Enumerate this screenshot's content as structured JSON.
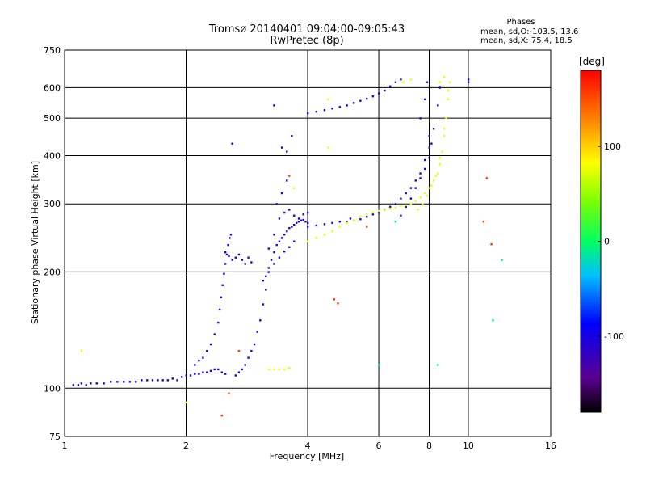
{
  "chart_data": {
    "type": "scatter",
    "title": "Tromsø 20140401 09:04:00-09:05:43",
    "subtitle": "RwPretec (8p)",
    "xlabel": "Frequency [MHz]",
    "ylabel": "Stationary phase Virtual Height [km]",
    "x_scale": "log",
    "y_scale": "log",
    "xlim": [
      1,
      16
    ],
    "ylim": [
      75,
      750
    ],
    "x_ticks": [
      1,
      2,
      4,
      6,
      8,
      10,
      16
    ],
    "y_ticks": [
      75,
      100,
      200,
      300,
      400,
      500,
      600,
      750
    ],
    "x_tick_labels": [
      "1",
      "2",
      "4",
      "6",
      "8",
      "10",
      "16"
    ],
    "y_tick_labels": [
      "75",
      "100",
      "200",
      "300",
      "400",
      "500",
      "600",
      "750"
    ],
    "grid": true,
    "stats": {
      "heading": "Phases",
      "o_line": "mean, sd,O:-103.5, 13.6",
      "x_line": "mean, sd,X: 75.4, 18.5"
    },
    "colorbar": {
      "label": "[deg]",
      "range": [
        -180,
        180
      ],
      "ticks": [
        100,
        0,
        -100
      ],
      "tick_labels": [
        "100",
        "0",
        "-100"
      ]
    },
    "series": [
      {
        "phase": -105,
        "points": [
          [
            1.05,
            102
          ],
          [
            1.08,
            102
          ],
          [
            1.1,
            103
          ],
          [
            1.13,
            102
          ],
          [
            1.16,
            103
          ],
          [
            1.2,
            103
          ],
          [
            1.25,
            103
          ],
          [
            1.3,
            104
          ],
          [
            1.35,
            104
          ],
          [
            1.4,
            104
          ],
          [
            1.45,
            104
          ],
          [
            1.5,
            104
          ],
          [
            1.55,
            105
          ],
          [
            1.6,
            105
          ],
          [
            1.65,
            105
          ],
          [
            1.7,
            105
          ],
          [
            1.75,
            105
          ],
          [
            1.8,
            105
          ],
          [
            1.85,
            106
          ],
          [
            1.9,
            105
          ],
          [
            1.95,
            107
          ],
          [
            2.0,
            108
          ],
          [
            2.05,
            108
          ],
          [
            2.1,
            109
          ],
          [
            2.15,
            109
          ],
          [
            2.2,
            110
          ],
          [
            2.25,
            110
          ],
          [
            2.3,
            111
          ],
          [
            2.35,
            112
          ],
          [
            2.4,
            112
          ],
          [
            2.45,
            110
          ],
          [
            2.5,
            109
          ],
          [
            2.1,
            115
          ],
          [
            2.15,
            118
          ],
          [
            2.2,
            120
          ],
          [
            2.25,
            125
          ],
          [
            2.3,
            130
          ],
          [
            2.35,
            138
          ],
          [
            2.4,
            148
          ],
          [
            2.42,
            160
          ],
          [
            2.44,
            172
          ],
          [
            2.46,
            185
          ],
          [
            2.48,
            198
          ],
          [
            2.5,
            210
          ],
          [
            2.52,
            222
          ],
          [
            2.54,
            235
          ],
          [
            2.56,
            245
          ],
          [
            2.58,
            250
          ],
          [
            2.5,
            225
          ],
          [
            2.55,
            220
          ],
          [
            2.6,
            215
          ],
          [
            2.65,
            218
          ],
          [
            2.7,
            222
          ],
          [
            2.75,
            215
          ],
          [
            2.8,
            210
          ],
          [
            2.85,
            218
          ],
          [
            2.9,
            212
          ],
          [
            2.65,
            108
          ],
          [
            2.7,
            110
          ],
          [
            2.75,
            112
          ],
          [
            2.8,
            115
          ],
          [
            2.85,
            120
          ],
          [
            2.9,
            125
          ],
          [
            2.95,
            130
          ],
          [
            3.0,
            140
          ],
          [
            3.05,
            150
          ],
          [
            3.1,
            165
          ],
          [
            3.15,
            180
          ],
          [
            3.2,
            200
          ],
          [
            3.1,
            190
          ],
          [
            3.15,
            195
          ],
          [
            3.2,
            205
          ],
          [
            3.25,
            215
          ],
          [
            3.3,
            225
          ],
          [
            3.35,
            235
          ],
          [
            3.4,
            240
          ],
          [
            3.45,
            245
          ],
          [
            3.5,
            250
          ],
          [
            3.55,
            255
          ],
          [
            3.6,
            260
          ],
          [
            3.65,
            262
          ],
          [
            3.7,
            265
          ],
          [
            3.75,
            268
          ],
          [
            3.8,
            270
          ],
          [
            3.85,
            272
          ],
          [
            3.9,
            273
          ],
          [
            3.95,
            270
          ],
          [
            4.0,
            268
          ],
          [
            3.2,
            230
          ],
          [
            3.3,
            250
          ],
          [
            3.4,
            275
          ],
          [
            3.5,
            285
          ],
          [
            3.6,
            290
          ],
          [
            3.7,
            280
          ],
          [
            3.8,
            275
          ],
          [
            3.9,
            282
          ],
          [
            4.0,
            285
          ],
          [
            3.3,
            210
          ],
          [
            3.4,
            218
          ],
          [
            3.5,
            226
          ],
          [
            3.6,
            232
          ],
          [
            3.7,
            240
          ],
          [
            3.35,
            300
          ],
          [
            3.45,
            320
          ],
          [
            3.55,
            345
          ],
          [
            4.0,
            262
          ],
          [
            4.2,
            264
          ],
          [
            4.4,
            266
          ],
          [
            4.6,
            268
          ],
          [
            4.8,
            270
          ],
          [
            5.0,
            270
          ],
          [
            5.2,
            272
          ],
          [
            5.4,
            274
          ],
          [
            5.6,
            278
          ],
          [
            5.8,
            282
          ],
          [
            6.0,
            285
          ],
          [
            6.2,
            290
          ],
          [
            6.4,
            295
          ],
          [
            6.6,
            300
          ],
          [
            6.8,
            310
          ],
          [
            7.0,
            320
          ],
          [
            7.2,
            330
          ],
          [
            7.4,
            345
          ],
          [
            7.6,
            360
          ],
          [
            7.8,
            390
          ],
          [
            8.0,
            420
          ],
          [
            8.2,
            470
          ],
          [
            8.4,
            540
          ],
          [
            8.5,
            600
          ],
          [
            6.8,
            280
          ],
          [
            7.0,
            295
          ],
          [
            7.2,
            310
          ],
          [
            7.4,
            330
          ],
          [
            7.6,
            350
          ],
          [
            7.8,
            370
          ],
          [
            8.0,
            395
          ],
          [
            8.1,
            430
          ],
          [
            7.6,
            500
          ],
          [
            7.8,
            560
          ],
          [
            7.9,
            620
          ],
          [
            8.0,
            450
          ],
          [
            4.0,
            515
          ],
          [
            4.2,
            520
          ],
          [
            4.4,
            525
          ],
          [
            4.6,
            530
          ],
          [
            4.8,
            535
          ],
          [
            5.0,
            540
          ],
          [
            5.2,
            548
          ],
          [
            5.4,
            555
          ],
          [
            5.6,
            562
          ],
          [
            5.8,
            570
          ],
          [
            6.0,
            580
          ],
          [
            6.2,
            590
          ],
          [
            6.4,
            605
          ],
          [
            6.6,
            620
          ],
          [
            6.8,
            630
          ],
          [
            3.45,
            420
          ],
          [
            3.55,
            410
          ],
          [
            3.65,
            450
          ],
          [
            2.6,
            430
          ],
          [
            3.3,
            540
          ],
          [
            5.1,
            275
          ],
          [
            10.0,
            630
          ],
          [
            10.0,
            620
          ]
        ]
      },
      {
        "phase": 75,
        "points": [
          [
            4.0,
            240
          ],
          [
            4.2,
            245
          ],
          [
            4.4,
            250
          ],
          [
            4.6,
            255
          ],
          [
            4.8,
            262
          ],
          [
            5.0,
            268
          ],
          [
            5.2,
            272
          ],
          [
            5.4,
            278
          ],
          [
            5.6,
            282
          ],
          [
            5.8,
            285
          ],
          [
            6.0,
            288
          ],
          [
            6.2,
            290
          ],
          [
            6.4,
            292
          ],
          [
            6.6,
            294
          ],
          [
            6.8,
            296
          ],
          [
            7.0,
            298
          ],
          [
            7.2,
            300
          ],
          [
            7.4,
            305
          ],
          [
            7.6,
            312
          ],
          [
            7.8,
            320
          ],
          [
            8.0,
            330
          ],
          [
            8.2,
            345
          ],
          [
            8.4,
            360
          ],
          [
            8.5,
            380
          ],
          [
            8.6,
            410
          ],
          [
            8.7,
            450
          ],
          [
            8.8,
            500
          ],
          [
            8.9,
            560
          ],
          [
            9.0,
            620
          ],
          [
            7.5,
            290
          ],
          [
            7.7,
            300
          ],
          [
            7.9,
            315
          ],
          [
            8.1,
            335
          ],
          [
            8.3,
            355
          ],
          [
            8.5,
            395
          ],
          [
            8.7,
            470
          ],
          [
            8.9,
            590
          ],
          [
            8.5,
            620
          ],
          [
            8.7,
            640
          ],
          [
            3.2,
            112
          ],
          [
            3.3,
            112
          ],
          [
            3.4,
            112
          ],
          [
            3.5,
            112
          ],
          [
            3.6,
            113
          ],
          [
            4.5,
            560
          ],
          [
            4.5,
            420
          ],
          [
            6.9,
            620
          ],
          [
            7.2,
            630
          ],
          [
            1.1,
            125
          ],
          [
            2.0,
            92
          ],
          [
            3.7,
            330
          ]
        ]
      },
      {
        "phase": 160,
        "points": [
          [
            2.45,
            85
          ],
          [
            2.55,
            97
          ],
          [
            2.7,
            125
          ],
          [
            4.65,
            170
          ],
          [
            4.75,
            166
          ],
          [
            11.1,
            350
          ],
          [
            11.4,
            236
          ],
          [
            10.9,
            270
          ],
          [
            3.6,
            355
          ],
          [
            5.6,
            262
          ]
        ]
      },
      {
        "phase": -10,
        "points": [
          [
            6.6,
            270
          ],
          [
            6.0,
            115
          ],
          [
            8.4,
            115
          ],
          [
            12.1,
            215
          ],
          [
            11.5,
            150
          ]
        ]
      }
    ]
  }
}
